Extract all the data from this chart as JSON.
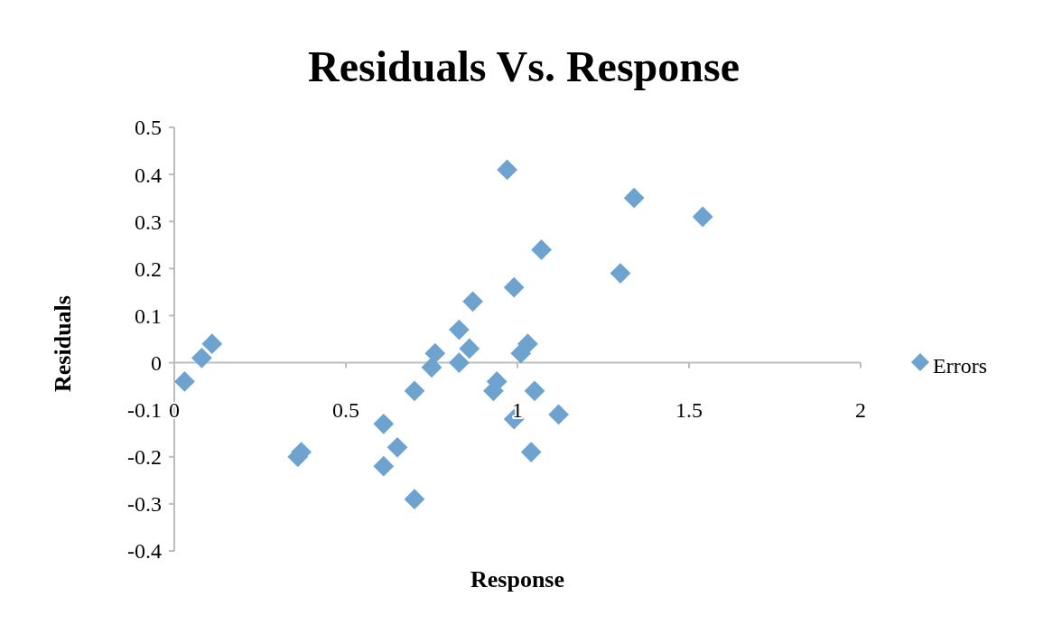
{
  "chart_data": {
    "type": "scatter",
    "title": "Residuals Vs. Response",
    "xlabel": "Response",
    "ylabel": "Residuals",
    "xlim": [
      0,
      2
    ],
    "xticks": [
      0,
      0.5,
      1,
      1.5,
      2
    ],
    "ylim": [
      -0.4,
      0.5
    ],
    "yticks": [
      -0.4,
      -0.3,
      -0.2,
      -0.1,
      0,
      0.1,
      0.2,
      0.3,
      0.4,
      0.5
    ],
    "legend": "right",
    "marker": "diamond",
    "grid": false,
    "series": [
      {
        "name": "Errors",
        "color": "#6fa3cf",
        "x": [
          0.03,
          0.08,
          0.11,
          0.36,
          0.37,
          0.61,
          0.61,
          0.65,
          0.7,
          0.7,
          0.75,
          0.76,
          0.83,
          0.83,
          0.86,
          0.87,
          0.93,
          0.94,
          0.97,
          0.99,
          0.99,
          1.01,
          1.03,
          1.04,
          1.05,
          1.07,
          1.12,
          1.3,
          1.34,
          1.54
        ],
        "values": [
          -0.04,
          0.01,
          0.04,
          -0.2,
          -0.19,
          -0.13,
          -0.22,
          -0.18,
          -0.06,
          -0.29,
          -0.01,
          0.02,
          0.07,
          0.0,
          0.03,
          0.13,
          -0.06,
          -0.04,
          0.41,
          0.16,
          -0.12,
          0.02,
          0.04,
          -0.19,
          -0.06,
          0.24,
          -0.11,
          0.19,
          0.35,
          0.31
        ]
      }
    ]
  }
}
